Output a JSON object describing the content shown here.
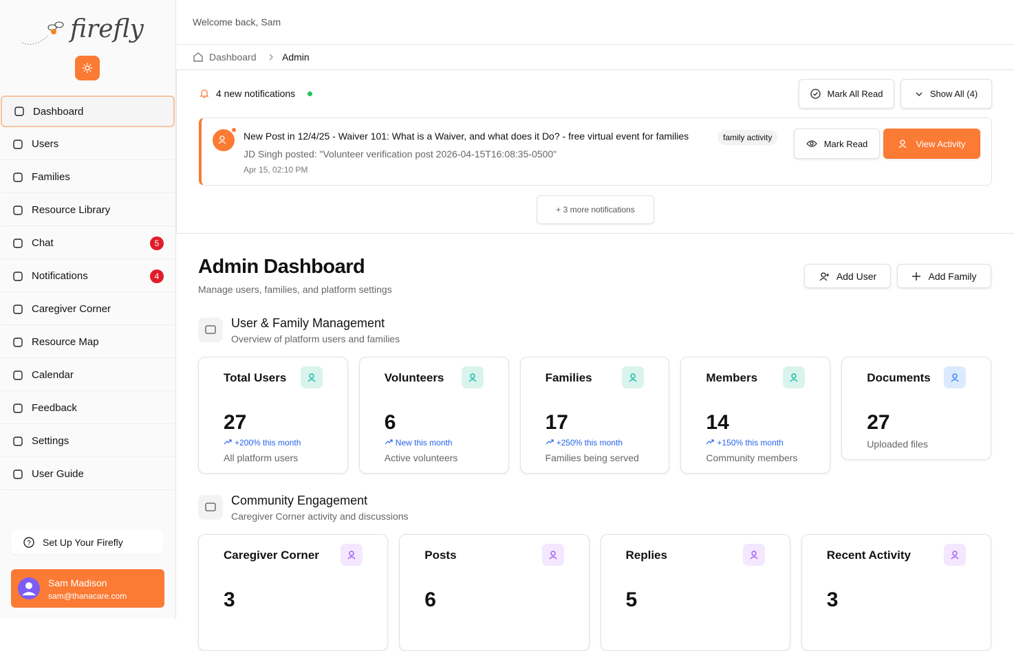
{
  "sidebar": {
    "brand": "firefly",
    "nav": [
      {
        "label": "Dashboard"
      },
      {
        "label": "Users"
      },
      {
        "label": "Families"
      },
      {
        "label": "Resource Library"
      },
      {
        "label": "Chat",
        "badge": 5
      },
      {
        "label": "Notifications",
        "badge": 4
      },
      {
        "label": "Caregiver Corner"
      },
      {
        "label": "Resource Map"
      },
      {
        "label": "Calendar"
      },
      {
        "label": "Feedback"
      },
      {
        "label": "Settings"
      },
      {
        "label": "User Guide"
      }
    ],
    "setup": "Set Up Your Firefly",
    "user": {
      "name": "Sam Madison",
      "email": "sam@thanacare.com"
    }
  },
  "header": {
    "welcome": "Welcome back, Sam"
  },
  "breadcrumb": [
    "Dashboard",
    "Admin"
  ],
  "notifications": {
    "summary": "4 new notifications",
    "mark_all": "Mark All Read",
    "show_all": "Show All (4)",
    "item": {
      "title": "New Post in 12/4/25 - Waiver 101: What is a Waiver, and what does it Do? - free virtual event for families",
      "tag": "family activity",
      "body": "JD Singh posted: \"Volunteer verification post 2026-04-15T16:08:35-0500\"",
      "time": "Apr 15, 02:10 PM",
      "mark_read": "Mark Read",
      "view": "View Activity"
    },
    "more": "+ 3 more notifications"
  },
  "page": {
    "title": "Admin Dashboard",
    "subtitle": "Manage users, families, and platform settings",
    "actions": [
      "Add User",
      "Add Family"
    ]
  },
  "sections": [
    {
      "title": "User & Family Management",
      "subtitle": "Overview of platform users and families",
      "cards": [
        {
          "title": "Total Users",
          "value": 27,
          "trend": "+200% this month",
          "caption": "All platform users"
        },
        {
          "title": "Volunteers",
          "value": 6,
          "trend": "New this month",
          "caption": "Active volunteers"
        },
        {
          "title": "Families",
          "value": 17,
          "trend": "+250% this month",
          "caption": "Families being served"
        },
        {
          "title": "Members",
          "value": 14,
          "trend": "+150% this month",
          "caption": "Community members"
        },
        {
          "title": "Documents",
          "value": 27,
          "caption": "Uploaded files"
        }
      ]
    },
    {
      "title": "Community Engagement",
      "subtitle": "Caregiver Corner activity and discussions",
      "cards": [
        {
          "title": "Caregiver Corner",
          "value": 3
        },
        {
          "title": "Posts",
          "value": 6
        },
        {
          "title": "Replies",
          "value": 5
        },
        {
          "title": "Recent Activity",
          "value": 3
        }
      ]
    }
  ]
}
